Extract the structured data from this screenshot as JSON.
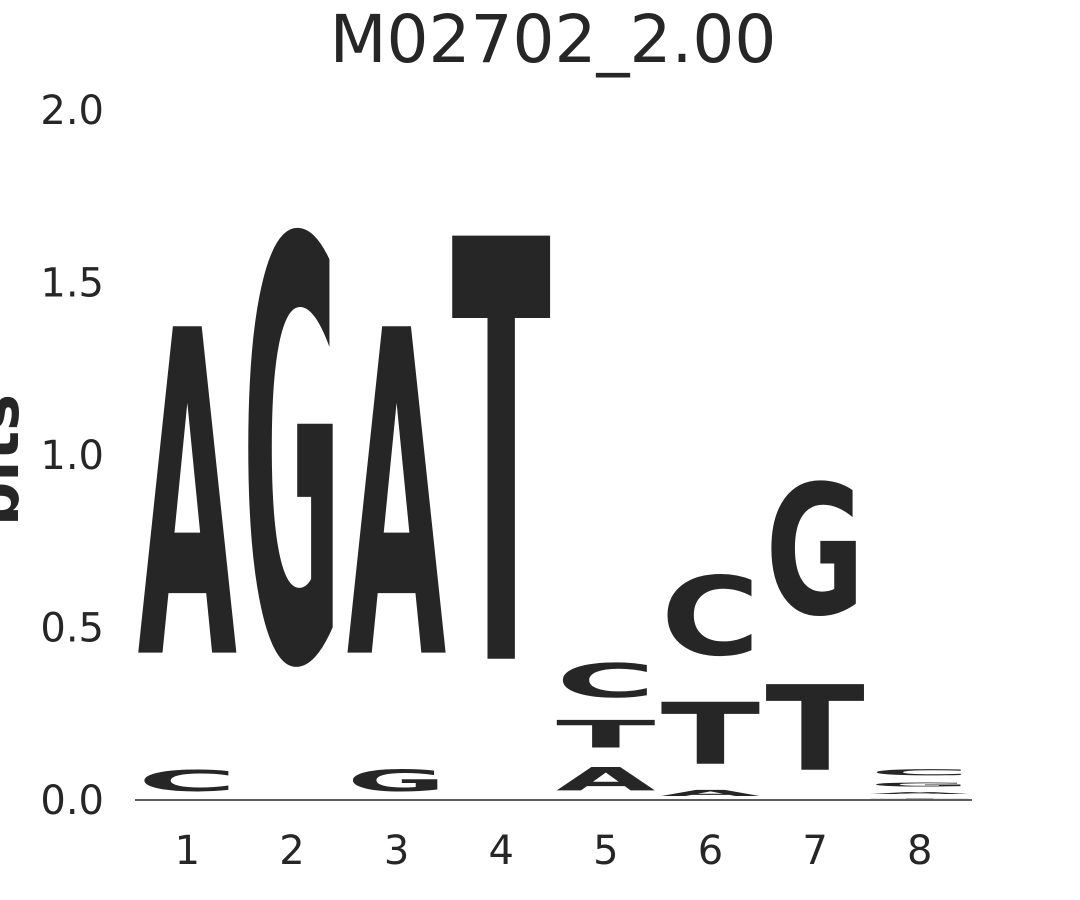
{
  "chart_data": {
    "type": "logo",
    "title": "M02702_2.00",
    "y_label": "bits",
    "categories": [
      "1",
      "2",
      "3",
      "4",
      "5",
      "6",
      "7",
      "8"
    ],
    "series": [
      {
        "name": "A",
        "color": "#008000",
        "values": [
          1.53,
          0,
          1.53,
          0,
          0.12,
          0.04,
          0,
          0.02
        ]
      },
      {
        "name": "C",
        "color": "#0000ff",
        "values": [
          0.11,
          0,
          0,
          0,
          0.17,
          0.38,
          0,
          0.04
        ]
      },
      {
        "name": "G",
        "color": "#ffa500",
        "values": [
          0,
          1.98,
          0.11,
          0,
          0,
          0,
          0.62,
          0.03
        ]
      },
      {
        "name": "T",
        "color": "#ff0000",
        "values": [
          0,
          0,
          0,
          1.98,
          0.14,
          0.3,
          0.41,
          0.01
        ]
      }
    ],
    "ylim": [
      0,
      2
    ],
    "yticks": [
      {
        "value": 0,
        "label": "0.0"
      },
      {
        "value": 0.5,
        "label": "0.5"
      },
      {
        "value": 1,
        "label": "1.0"
      },
      {
        "value": 1.5,
        "label": "1.5"
      },
      {
        "value": 2,
        "label": "2.0"
      }
    ]
  }
}
